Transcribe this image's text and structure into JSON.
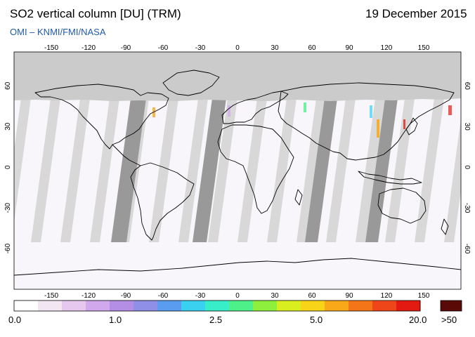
{
  "header": {
    "title": "SO2 vertical column [DU] (TRM)",
    "date": "19 December 2015",
    "credit": "OMI  –  KNMI/FMI/NASA"
  },
  "map": {
    "projection": "equirectangular",
    "lon_ticks": [
      "-150",
      "-120",
      "-90",
      "-60",
      "-30",
      "0",
      "30",
      "60",
      "90",
      "120",
      "150"
    ],
    "lat_ticks": [
      "60",
      "30",
      "0",
      "-30",
      "-60"
    ],
    "polar_night_color": "#cbcbcb",
    "no_data_swath_color": "#999999",
    "background_color": "#f8f6fb"
  },
  "colorbar": {
    "labels": [
      "0.0",
      "1.0",
      "2.5",
      "5.0",
      "20.0"
    ],
    "overflow_label": ">50",
    "colors": [
      "#ffffff",
      "#f3e6f3",
      "#e6c8ef",
      "#d2a8ec",
      "#b48ee4",
      "#8f8fe8",
      "#5a9cf0",
      "#3ad0f0",
      "#38eec8",
      "#4ef08a",
      "#8ef03c",
      "#d8ee1e",
      "#f8d418",
      "#f8a818",
      "#f47418",
      "#ee4618",
      "#e21a12"
    ],
    "overflow_color": "#5a0a06"
  }
}
